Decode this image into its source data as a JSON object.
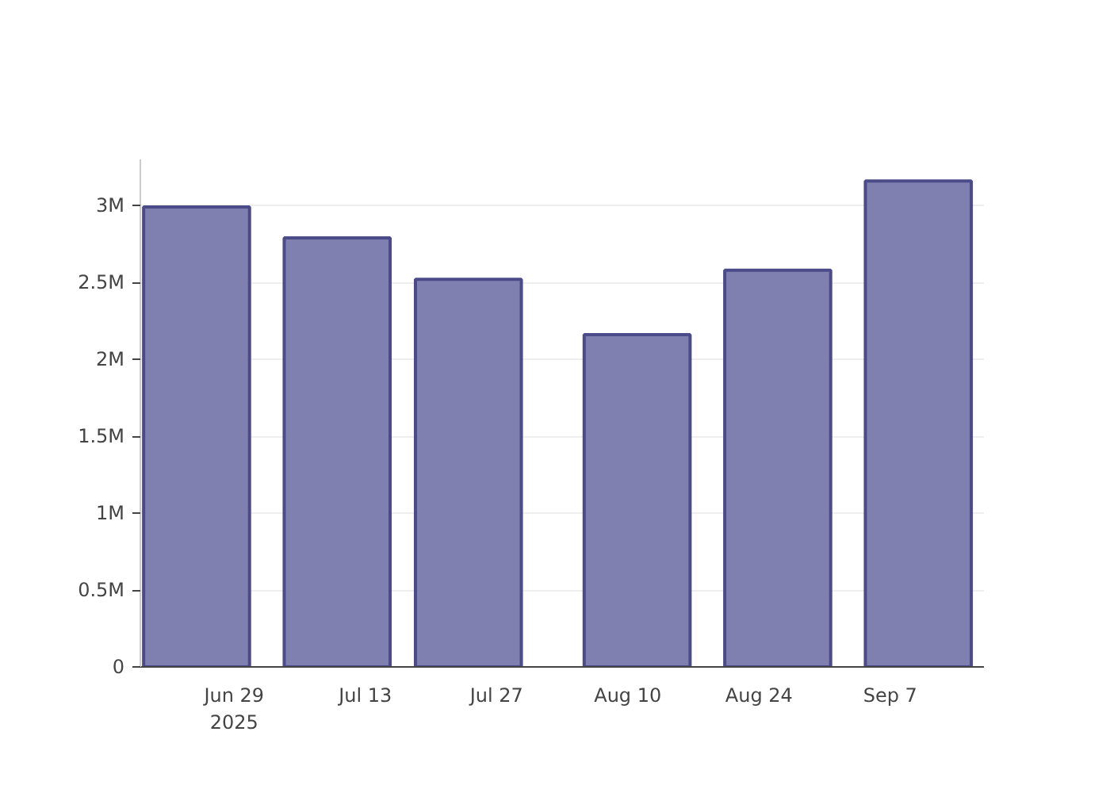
{
  "chart_data": {
    "type": "bar",
    "x": [
      "2025-06-25",
      "2025-07-10",
      "2025-07-24",
      "2025-08-11",
      "2025-08-26",
      "2025-09-10"
    ],
    "values": [
      2.99,
      2.79,
      2.52,
      2.16,
      2.58,
      3.16
    ],
    "color": "#7f7fb0",
    "xlim": [
      "2025-06-19",
      "2025-09-17"
    ],
    "xticks": [
      {
        "value": "2025-06-29",
        "label": "Jun 29\n2025"
      },
      {
        "value": "2025-07-13",
        "label": "Jul 13"
      },
      {
        "value": "2025-07-27",
        "label": "Jul 27"
      },
      {
        "value": "2025-08-10",
        "label": "Aug 10"
      },
      {
        "value": "2025-08-24",
        "label": "Aug 24"
      },
      {
        "value": "2025-09-07",
        "label": "Sep 7"
      }
    ],
    "ylim": [
      0,
      3.3
    ],
    "yticks": [
      {
        "value": 0,
        "label": "0"
      },
      {
        "value": 0.5,
        "label": "0.5M"
      },
      {
        "value": 1,
        "label": "1M"
      },
      {
        "value": 1.5,
        "label": "1.5M"
      },
      {
        "value": 2,
        "label": "2M"
      },
      {
        "value": 2.5,
        "label": "2.5M"
      },
      {
        "value": 3,
        "label": "3M"
      }
    ],
    "grid": "y"
  }
}
